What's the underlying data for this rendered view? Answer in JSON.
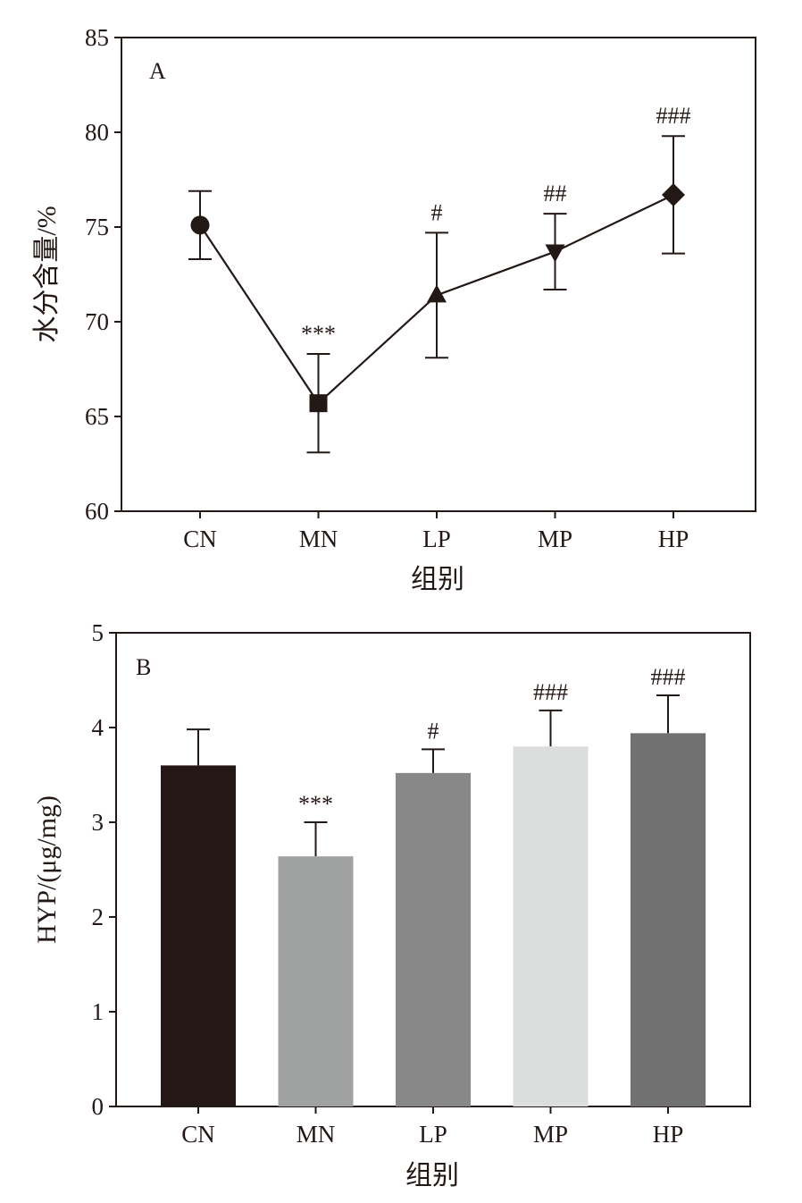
{
  "chart_data": [
    {
      "type": "line",
      "panel_label": "A",
      "categories": [
        "CN",
        "MN",
        "LP",
        "MP",
        "HP"
      ],
      "values": [
        75.1,
        65.7,
        71.4,
        73.7,
        76.7
      ],
      "errors": [
        1.8,
        2.6,
        3.3,
        2.0,
        3.1
      ],
      "markers": [
        "circle",
        "square",
        "triangle-up",
        "triangle-down",
        "diamond"
      ],
      "annotations": [
        "",
        "***",
        "#",
        "##",
        "###"
      ],
      "xlabel": "组别",
      "ylabel": "水分含量/%",
      "ylim": [
        60,
        85
      ],
      "yticks": [
        "60",
        "65",
        "70",
        "75",
        "80",
        "85"
      ],
      "grid": false,
      "colors": {
        "line": "#231815",
        "marker": "#231815"
      }
    },
    {
      "type": "bar",
      "panel_label": "B",
      "categories": [
        "CN",
        "MN",
        "LP",
        "MP",
        "HP"
      ],
      "values": [
        3.6,
        2.64,
        3.52,
        3.8,
        3.94
      ],
      "errors": [
        0.38,
        0.36,
        0.25,
        0.38,
        0.4
      ],
      "annotations": [
        "",
        "***",
        "#",
        "###",
        "###"
      ],
      "xlabel": "组别",
      "ylabel": "HYP/(μg/mg)",
      "ylim": [
        0,
        5
      ],
      "yticks": [
        "0",
        "1",
        "2",
        "3",
        "4",
        "5"
      ],
      "grid": false,
      "colors": [
        "#231815",
        "#a0a1a1",
        "#888888",
        "#dcdddd",
        "#717171"
      ]
    }
  ]
}
